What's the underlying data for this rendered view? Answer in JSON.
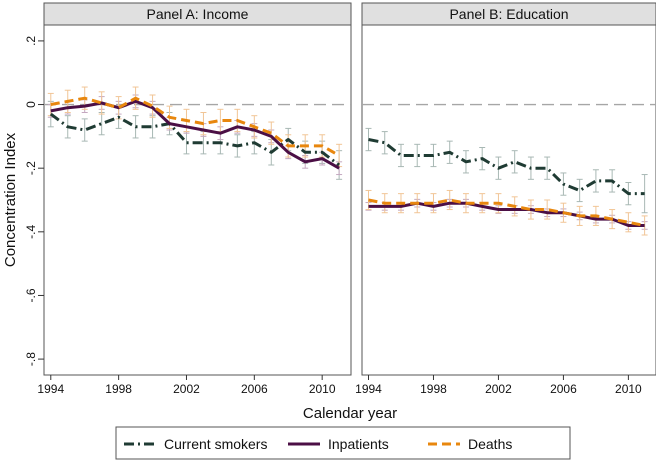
{
  "chart_data": {
    "type": "line",
    "ylabel": "Concentration Index",
    "xlabel": "Calendar year",
    "ylim": [
      -0.85,
      0.25
    ],
    "xlim": [
      1993.6,
      2011.7
    ],
    "y_ticks": [
      0.2,
      0,
      -0.2,
      -0.4,
      -0.6,
      -0.8
    ],
    "y_tick_labels": [
      ".2",
      "0",
      "-.2",
      "-.4",
      "-.6",
      "-.8"
    ],
    "x_ticks": [
      1994,
      1998,
      2002,
      2006,
      2010
    ],
    "x_tick_labels": [
      "1994",
      "1998",
      "2002",
      "2006",
      "2010"
    ],
    "reference_line": 0,
    "grid": false,
    "legend_position": "bottom",
    "colors": {
      "smokers": "#1f3b33",
      "inpatients": "#4b0f45",
      "deaths": "#e8870e",
      "ci_smokers": "#a8b8b4",
      "ci_inpatients": "#c4a8c0",
      "ci_deaths": "#f1c596",
      "strip": "#e0e0e0",
      "refline": "#a6a6a6"
    },
    "legend": [
      "Current smokers",
      "Inpatients",
      "Deaths"
    ],
    "x": [
      1994,
      1995,
      1996,
      1997,
      1998,
      1999,
      2000,
      2001,
      2002,
      2003,
      2004,
      2005,
      2006,
      2007,
      2008,
      2009,
      2010,
      2011
    ],
    "panels": [
      {
        "title": "Panel A: Income",
        "series": [
          {
            "name": "Current smokers",
            "key": "smokers",
            "style": "dashdot",
            "values": [
              -0.03,
              -0.07,
              -0.08,
              -0.06,
              -0.04,
              -0.07,
              -0.07,
              -0.06,
              -0.12,
              -0.12,
              -0.12,
              -0.13,
              -0.12,
              -0.15,
              -0.11,
              -0.15,
              -0.15,
              -0.19
            ],
            "ci_half": [
              0.04,
              0.035,
              0.035,
              0.035,
              0.035,
              0.035,
              0.035,
              0.035,
              0.035,
              0.035,
              0.035,
              0.035,
              0.035,
              0.04,
              0.035,
              0.035,
              0.035,
              0.045
            ]
          },
          {
            "name": "Inpatients",
            "key": "inpatients",
            "style": "solid",
            "values": [
              -0.02,
              -0.01,
              -0.005,
              0.005,
              -0.01,
              0.01,
              -0.01,
              -0.06,
              -0.07,
              -0.08,
              -0.09,
              -0.07,
              -0.08,
              -0.1,
              -0.15,
              -0.18,
              -0.17,
              -0.2
            ],
            "ci_half": [
              0.02,
              0.02,
              0.02,
              0.02,
              0.02,
              0.02,
              0.02,
              0.02,
              0.02,
              0.02,
              0.02,
              0.02,
              0.02,
              0.02,
              0.02,
              0.02,
              0.02,
              0.02
            ]
          },
          {
            "name": "Deaths",
            "key": "deaths",
            "style": "dashed",
            "values": [
              0.0,
              0.01,
              0.02,
              0.005,
              -0.01,
              0.02,
              -0.005,
              -0.04,
              -0.05,
              -0.06,
              -0.05,
              -0.05,
              -0.07,
              -0.09,
              -0.13,
              -0.13,
              -0.13,
              -0.16
            ],
            "ci_half": [
              0.035,
              0.035,
              0.035,
              0.035,
              0.035,
              0.035,
              0.035,
              0.035,
              0.035,
              0.035,
              0.035,
              0.035,
              0.035,
              0.035,
              0.035,
              0.035,
              0.035,
              0.035
            ]
          }
        ]
      },
      {
        "title": "Panel B: Education",
        "series": [
          {
            "name": "Current smokers",
            "key": "smokers",
            "style": "dashdot",
            "values": [
              -0.11,
              -0.12,
              -0.16,
              -0.16,
              -0.16,
              -0.15,
              -0.18,
              -0.17,
              -0.2,
              -0.18,
              -0.2,
              -0.2,
              -0.25,
              -0.27,
              -0.24,
              -0.24,
              -0.28,
              -0.28
            ],
            "ci_half": [
              0.035,
              0.035,
              0.035,
              0.035,
              0.035,
              0.035,
              0.035,
              0.035,
              0.035,
              0.035,
              0.035,
              0.035,
              0.035,
              0.035,
              0.035,
              0.035,
              0.035,
              0.06
            ]
          },
          {
            "name": "Inpatients",
            "key": "inpatients",
            "style": "solid",
            "values": [
              -0.32,
              -0.32,
              -0.32,
              -0.31,
              -0.32,
              -0.31,
              -0.31,
              -0.32,
              -0.33,
              -0.33,
              -0.33,
              -0.34,
              -0.34,
              -0.35,
              -0.36,
              -0.36,
              -0.38,
              -0.38
            ],
            "ci_half": [
              0.012,
              0.012,
              0.012,
              0.012,
              0.012,
              0.012,
              0.012,
              0.012,
              0.012,
              0.012,
              0.012,
              0.012,
              0.012,
              0.012,
              0.012,
              0.012,
              0.012,
              0.012
            ]
          },
          {
            "name": "Deaths",
            "key": "deaths",
            "style": "dashed",
            "values": [
              -0.3,
              -0.31,
              -0.31,
              -0.31,
              -0.31,
              -0.3,
              -0.31,
              -0.31,
              -0.31,
              -0.32,
              -0.33,
              -0.33,
              -0.34,
              -0.35,
              -0.35,
              -0.36,
              -0.37,
              -0.38
            ],
            "ci_half": [
              0.03,
              0.03,
              0.03,
              0.03,
              0.03,
              0.03,
              0.03,
              0.03,
              0.03,
              0.03,
              0.03,
              0.03,
              0.03,
              0.03,
              0.03,
              0.03,
              0.03,
              0.03
            ]
          }
        ]
      }
    ]
  }
}
